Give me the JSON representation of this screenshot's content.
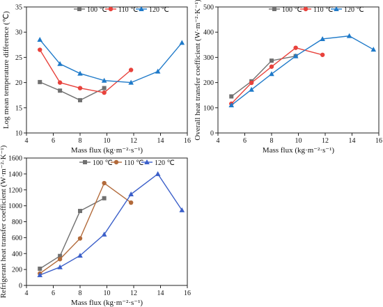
{
  "chart_data": [
    {
      "type": "line",
      "xlabel": "Mass flux (kg·m⁻²·s⁻¹)",
      "ylabel": "Log mean temperature difference (℃)",
      "xlim": [
        4,
        16
      ],
      "ylim": [
        10,
        35
      ],
      "xticks": [
        4,
        6,
        8,
        10,
        12,
        14,
        16
      ],
      "yticks": [
        10,
        15,
        20,
        25,
        30,
        35
      ],
      "legend_position": "top-right",
      "series": [
        {
          "name": "100 ℃",
          "color": "#707070",
          "marker": "square",
          "x": [
            5.0,
            6.5,
            8.0,
            9.8
          ],
          "y": [
            20.1,
            18.4,
            16.5,
            18.9
          ]
        },
        {
          "name": "110 ℃",
          "color": "#e8423c",
          "marker": "circle",
          "x": [
            5.0,
            6.5,
            8.0,
            9.8,
            11.8
          ],
          "y": [
            26.5,
            20.0,
            18.9,
            18.0,
            22.5
          ]
        },
        {
          "name": "120 ℃",
          "color": "#1f7ac9",
          "marker": "triangle",
          "x": [
            5.0,
            6.5,
            8.0,
            9.8,
            11.8,
            13.8,
            15.6
          ],
          "y": [
            28.5,
            23.7,
            21.8,
            20.4,
            20.0,
            22.2,
            27.9
          ]
        }
      ]
    },
    {
      "type": "line",
      "xlabel": "Mass flux (kg·m⁻²·s⁻¹)",
      "ylabel": "Overall heat transfer coefficient (W·m⁻²·K⁻¹)",
      "xlim": [
        4,
        16
      ],
      "ylim": [
        0,
        500
      ],
      "xticks": [
        4,
        6,
        8,
        10,
        12,
        14,
        16
      ],
      "yticks": [
        0,
        100,
        200,
        300,
        400,
        500
      ],
      "legend_position": "top-right",
      "series": [
        {
          "name": "100 ℃",
          "color": "#707070",
          "marker": "square",
          "x": [
            5.0,
            6.5,
            8.0,
            9.8
          ],
          "y": [
            145,
            205,
            287,
            305
          ]
        },
        {
          "name": "110 ℃",
          "color": "#e8423c",
          "marker": "circle",
          "x": [
            5.0,
            6.5,
            8.0,
            9.8,
            11.8
          ],
          "y": [
            116,
            199,
            263,
            338,
            310
          ]
        },
        {
          "name": "120 ℃",
          "color": "#1f7ac9",
          "marker": "triangle",
          "x": [
            5.0,
            6.5,
            8.0,
            9.8,
            11.8,
            13.8,
            15.6
          ],
          "y": [
            110,
            172,
            234,
            305,
            373,
            385,
            331
          ]
        }
      ]
    },
    {
      "type": "line",
      "xlabel": "Mass flux (kg·m⁻²·s⁻¹)",
      "ylabel": "Refrigerant heat transfer coefficient (W·m⁻²·K⁻¹)",
      "xlim": [
        4,
        16
      ],
      "ylim": [
        0,
        1600
      ],
      "xticks": [
        4,
        6,
        8,
        10,
        12,
        14,
        16
      ],
      "yticks": [
        0,
        200,
        400,
        600,
        800,
        1000,
        1200,
        1400,
        1600
      ],
      "legend_position": "top-right",
      "series": [
        {
          "name": "100 ℃",
          "color": "#707070",
          "marker": "square",
          "x": [
            5.0,
            6.5,
            8.0,
            9.8
          ],
          "y": [
            210,
            370,
            935,
            1095
          ]
        },
        {
          "name": "110 ℃",
          "color": "#b26a3a",
          "marker": "circle",
          "x": [
            5.0,
            6.5,
            8.0,
            9.8,
            11.8
          ],
          "y": [
            150,
            330,
            590,
            1285,
            1040
          ]
        },
        {
          "name": "120 ℃",
          "color": "#3b5fc9",
          "marker": "triangle",
          "x": [
            5.0,
            6.5,
            8.0,
            9.8,
            11.8,
            13.8,
            15.6
          ],
          "y": [
            130,
            230,
            375,
            640,
            1145,
            1400,
            945
          ]
        }
      ]
    }
  ]
}
